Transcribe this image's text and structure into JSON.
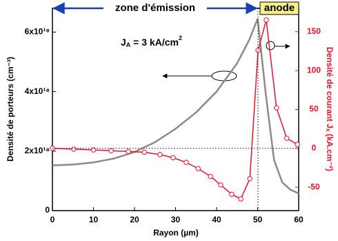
{
  "chart_data": {
    "type": "line",
    "x_label": "Rayon (µm)",
    "y_label": "Densité de porteurs (cm⁻³)",
    "y2_label": "Densité de courant Jₓ (kA.cm⁻²)",
    "zone_label": "zone d'émission",
    "anode_label": "anode",
    "annotation": {
      "main": "J",
      "sub": "A",
      "rest": " = 3 kA/cm",
      "sup": "2"
    },
    "xlim": [
      0,
      60
    ],
    "xticks": [
      0,
      10,
      20,
      30,
      40,
      50,
      60
    ],
    "ylim": [
      0,
      6.8e+18
    ],
    "yticks": [
      0,
      {
        "value": 2e+18,
        "label": "2x10¹⁸"
      },
      {
        "value": 4e+18,
        "label": "4x10¹⁸"
      },
      {
        "value": 6e+18,
        "label": "6x10¹⁸"
      }
    ],
    "y2lim": [
      -80,
      180
    ],
    "y2ticks": [
      -50,
      0,
      50,
      100,
      150
    ],
    "series": [
      {
        "name": "Densité de porteurs",
        "color": "#8a8a8a",
        "x": [
          0,
          5,
          10,
          15,
          20,
          25,
          30,
          35,
          40,
          45,
          48,
          50,
          52,
          54,
          56,
          58,
          60
        ],
        "values": [
          1.52e+18,
          1.55e+18,
          1.62e+18,
          1.75e+18,
          1.97e+18,
          2.3e+18,
          2.75e+18,
          3.3e+18,
          4e+18,
          4.95e+18,
          5.75e+18,
          6.45e+18,
          3.9e+18,
          1.7e+18,
          9.5e+17,
          7e+17,
          5.8e+17
        ]
      },
      {
        "name": "Densité de courant",
        "color": "#e8102a",
        "axis": "y2",
        "x": [
          0,
          5.2,
          10,
          14.3,
          18.5,
          22.4,
          26.2,
          29.4,
          32.6,
          35.5,
          38.5,
          41,
          43.7,
          45.9,
          48.1,
          50.1,
          52.1,
          54.6,
          57.1,
          59.7
        ],
        "values": [
          0,
          -1,
          -2,
          -3,
          -4,
          -5,
          -8,
          -12,
          -18,
          -26,
          -36,
          -47,
          -59,
          -65,
          -39,
          126,
          165,
          52,
          13,
          5
        ]
      }
    ]
  }
}
